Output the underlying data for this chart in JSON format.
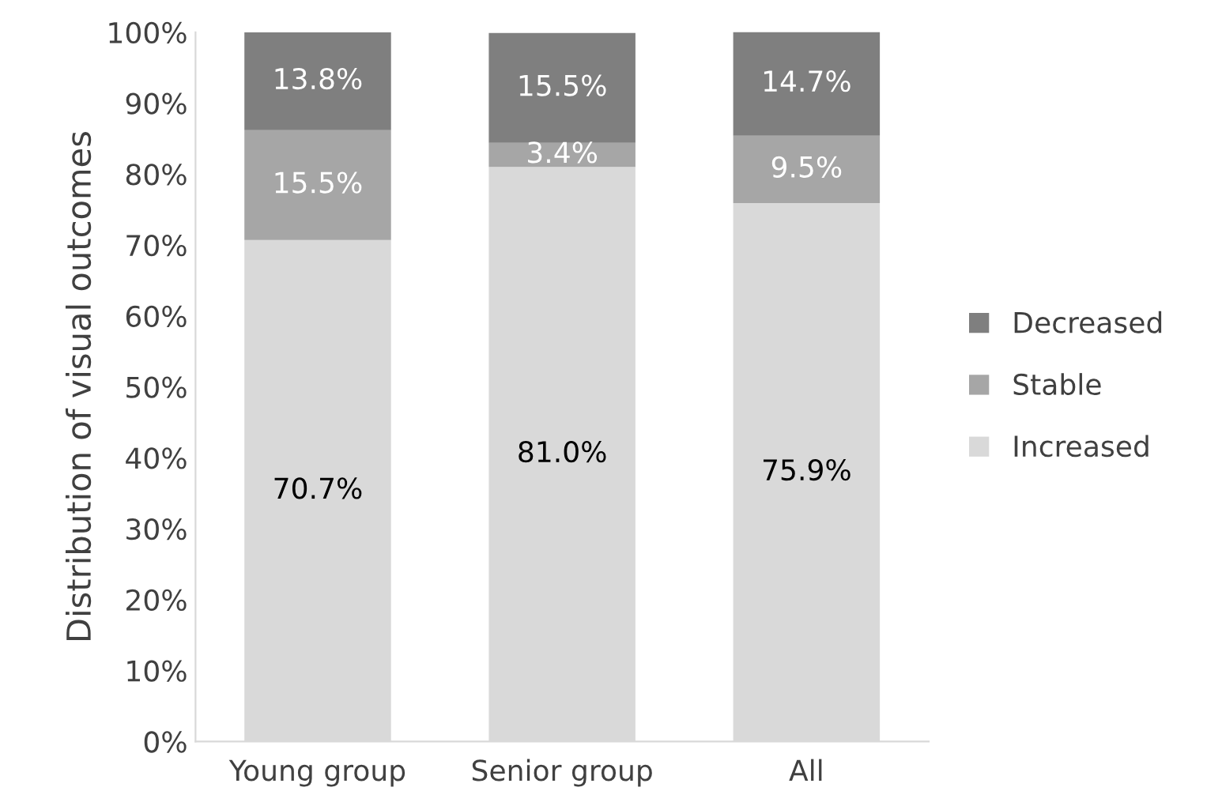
{
  "chart_data": {
    "type": "bar",
    "stacked": true,
    "ylabel": "Distribution of visual outcomes",
    "categories": [
      "Young group",
      "Senior group",
      "All"
    ],
    "series": [
      {
        "name": "Increased",
        "color": "#d9d9d9",
        "values": [
          70.7,
          81.0,
          75.9
        ],
        "value_labels": [
          "70.7%",
          "81.0%",
          "75.9%"
        ]
      },
      {
        "name": "Stable",
        "color": "#a6a6a6",
        "values": [
          15.5,
          3.4,
          9.5
        ],
        "value_labels": [
          "15.5%",
          "3.4%",
          "9.5%"
        ]
      },
      {
        "name": "Decreased",
        "color": "#7f7f7f",
        "values": [
          13.8,
          15.5,
          14.7
        ],
        "value_labels": [
          "13.8%",
          "15.5%",
          "14.7%"
        ]
      }
    ],
    "ylim": [
      0,
      100
    ],
    "yticks": [
      {
        "value": 0,
        "label": "0%"
      },
      {
        "value": 10,
        "label": "10%"
      },
      {
        "value": 20,
        "label": "20%"
      },
      {
        "value": 30,
        "label": "30%"
      },
      {
        "value": 40,
        "label": "40%"
      },
      {
        "value": 50,
        "label": "50%"
      },
      {
        "value": 60,
        "label": "60%"
      },
      {
        "value": 70,
        "label": "70%"
      },
      {
        "value": 80,
        "label": "80%"
      },
      {
        "value": 90,
        "label": "90%"
      },
      {
        "value": 100,
        "label": "100%"
      }
    ],
    "grid": false,
    "legend": "right"
  }
}
